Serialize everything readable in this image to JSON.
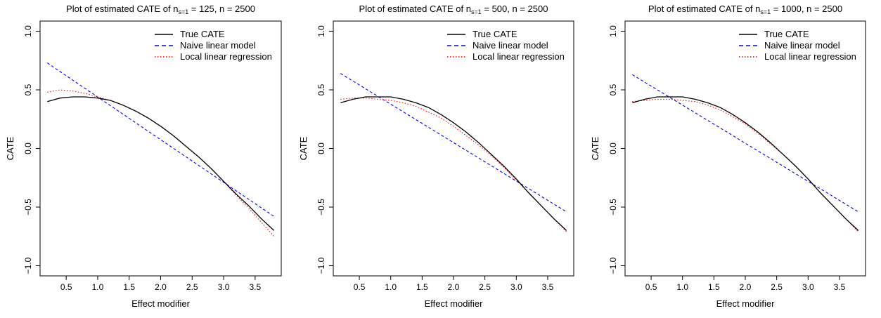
{
  "chart_data": [
    {
      "type": "line",
      "title_prefix": "Plot of estimated CATE of n",
      "title_sub": "s=1",
      "title_suffix": " = 125, n = 2500",
      "xlabel": "Effect modifier",
      "ylabel": "CATE",
      "xlim": [
        0.2,
        3.8
      ],
      "ylim": [
        -1.0,
        1.0
      ],
      "xticks": [
        0.5,
        1.0,
        1.5,
        2.0,
        2.5,
        3.0,
        3.5
      ],
      "yticks": [
        -1.0,
        -0.5,
        0.0,
        0.5,
        1.0
      ],
      "legend": "top-right",
      "series": [
        {
          "name": "True CATE",
          "color": "#000000",
          "dash": "solid",
          "x": [
            0.2,
            0.4,
            0.6,
            0.8,
            1.0,
            1.2,
            1.4,
            1.6,
            1.8,
            2.0,
            2.2,
            2.4,
            2.6,
            2.8,
            3.0,
            3.2,
            3.4,
            3.6,
            3.8
          ],
          "y": [
            0.4,
            0.43,
            0.44,
            0.44,
            0.43,
            0.41,
            0.37,
            0.32,
            0.26,
            0.19,
            0.11,
            0.02,
            -0.07,
            -0.17,
            -0.28,
            -0.39,
            -0.49,
            -0.6,
            -0.7
          ]
        },
        {
          "name": "Naive linear model",
          "color": "#0000ff",
          "dash": "dashed",
          "x": [
            0.2,
            3.8
          ],
          "y": [
            0.73,
            -0.58
          ]
        },
        {
          "name": "Local linear regression",
          "color": "#ff0000",
          "dash": "dotted",
          "x": [
            0.2,
            0.4,
            0.6,
            0.8,
            1.0,
            1.2,
            1.4,
            1.6,
            1.8,
            2.0,
            2.2,
            2.4,
            2.6,
            2.8,
            3.0,
            3.2,
            3.4,
            3.6,
            3.8
          ],
          "y": [
            0.48,
            0.5,
            0.49,
            0.47,
            0.44,
            0.41,
            0.37,
            0.32,
            0.26,
            0.19,
            0.11,
            0.02,
            -0.07,
            -0.17,
            -0.28,
            -0.4,
            -0.51,
            -0.63,
            -0.75
          ]
        }
      ]
    },
    {
      "type": "line",
      "title_prefix": "Plot of estimated CATE of n",
      "title_sub": "s=1",
      "title_suffix": " = 500, n = 2500",
      "xlabel": "Effect modifier",
      "ylabel": "CATE",
      "xlim": [
        0.2,
        3.8
      ],
      "ylim": [
        -1.0,
        1.0
      ],
      "xticks": [
        0.5,
        1.0,
        1.5,
        2.0,
        2.5,
        3.0,
        3.5
      ],
      "yticks": [
        -1.0,
        -0.5,
        0.0,
        0.5,
        1.0
      ],
      "legend": "top-right",
      "series": [
        {
          "name": "True CATE",
          "color": "#000000",
          "dash": "solid",
          "x": [
            0.2,
            0.4,
            0.6,
            0.8,
            1.0,
            1.2,
            1.4,
            1.6,
            1.8,
            2.0,
            2.2,
            2.4,
            2.6,
            2.8,
            3.0,
            3.2,
            3.4,
            3.6,
            3.8
          ],
          "y": [
            0.39,
            0.42,
            0.44,
            0.44,
            0.44,
            0.42,
            0.39,
            0.35,
            0.29,
            0.22,
            0.14,
            0.05,
            -0.05,
            -0.15,
            -0.26,
            -0.38,
            -0.49,
            -0.6,
            -0.7
          ]
        },
        {
          "name": "Naive linear model",
          "color": "#0000ff",
          "dash": "dashed",
          "x": [
            0.2,
            3.8
          ],
          "y": [
            0.64,
            -0.54
          ]
        },
        {
          "name": "Local linear regression",
          "color": "#ff0000",
          "dash": "dotted",
          "x": [
            0.2,
            0.4,
            0.6,
            0.8,
            1.0,
            1.2,
            1.4,
            1.6,
            1.8,
            2.0,
            2.2,
            2.4,
            2.6,
            2.8,
            3.0,
            3.2,
            3.4,
            3.6,
            3.8
          ],
          "y": [
            0.42,
            0.43,
            0.43,
            0.42,
            0.41,
            0.39,
            0.36,
            0.31,
            0.26,
            0.19,
            0.11,
            0.03,
            -0.06,
            -0.16,
            -0.27,
            -0.38,
            -0.49,
            -0.6,
            -0.71
          ]
        }
      ]
    },
    {
      "type": "line",
      "title_prefix": "Plot of estimated CATE of n",
      "title_sub": "s=1",
      "title_suffix": " = 1000, n = 2500",
      "xlabel": "Effect modifier",
      "ylabel": "CATE",
      "xlim": [
        0.2,
        3.8
      ],
      "ylim": [
        -1.0,
        1.0
      ],
      "xticks": [
        0.5,
        1.0,
        1.5,
        2.0,
        2.5,
        3.0,
        3.5
      ],
      "yticks": [
        -1.0,
        -0.5,
        0.0,
        0.5,
        1.0
      ],
      "legend": "top-right",
      "series": [
        {
          "name": "True CATE",
          "color": "#000000",
          "dash": "solid",
          "x": [
            0.2,
            0.4,
            0.6,
            0.8,
            1.0,
            1.2,
            1.4,
            1.6,
            1.8,
            2.0,
            2.2,
            2.4,
            2.6,
            2.8,
            3.0,
            3.2,
            3.4,
            3.6,
            3.8
          ],
          "y": [
            0.39,
            0.42,
            0.44,
            0.44,
            0.44,
            0.42,
            0.39,
            0.35,
            0.29,
            0.22,
            0.14,
            0.05,
            -0.05,
            -0.15,
            -0.26,
            -0.38,
            -0.49,
            -0.6,
            -0.7
          ]
        },
        {
          "name": "Naive linear model",
          "color": "#0000ff",
          "dash": "dashed",
          "x": [
            0.2,
            3.8
          ],
          "y": [
            0.63,
            -0.54
          ]
        },
        {
          "name": "Local linear regression",
          "color": "#ff0000",
          "dash": "dotted",
          "x": [
            0.2,
            0.4,
            0.6,
            0.8,
            1.0,
            1.2,
            1.4,
            1.6,
            1.8,
            2.0,
            2.2,
            2.4,
            2.6,
            2.8,
            3.0,
            3.2,
            3.4,
            3.6,
            3.8
          ],
          "y": [
            0.4,
            0.41,
            0.42,
            0.42,
            0.41,
            0.4,
            0.37,
            0.33,
            0.27,
            0.21,
            0.13,
            0.04,
            -0.05,
            -0.15,
            -0.26,
            -0.38,
            -0.49,
            -0.6,
            -0.71
          ]
        }
      ]
    }
  ]
}
